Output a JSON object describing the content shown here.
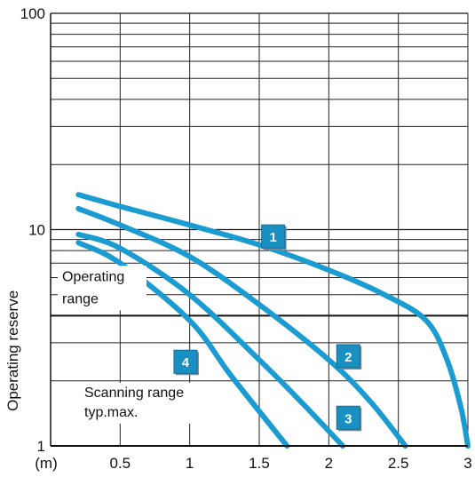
{
  "chart_data": {
    "type": "line",
    "title": "",
    "xlabel": "",
    "ylabel": "Operating reserve",
    "x_unit_label": "(m)",
    "xlim": [
      0,
      3
    ],
    "ylim": [
      1,
      100
    ],
    "y_scale": "log",
    "x_ticks": [
      "0.5",
      "1",
      "1.5",
      "2",
      "2.5",
      "3"
    ],
    "x_tick_values": [
      0.5,
      1,
      1.5,
      2,
      2.5,
      3
    ],
    "y_ticks": [
      "1",
      "10",
      "100"
    ],
    "y_tick_values": [
      1,
      10,
      100
    ],
    "grid": true,
    "threshold_line": {
      "y": 4,
      "label": "Operating range"
    },
    "annotations": [
      "Operating range",
      "Scanning range typ.max."
    ],
    "line_color": "#1a9bd1",
    "badge_color": "#1a8fc2",
    "series": [
      {
        "name": "1",
        "x": [
          0.2,
          0.5,
          1.0,
          1.5,
          2.0,
          2.4,
          2.7,
          2.85,
          2.95,
          3.0
        ],
        "y": [
          14.5,
          12.8,
          10.5,
          8.5,
          6.5,
          5.0,
          3.8,
          2.5,
          1.5,
          1.0
        ]
      },
      {
        "name": "2",
        "x": [
          0.2,
          0.5,
          1.0,
          1.5,
          2.0,
          2.3,
          2.55
        ],
        "y": [
          12.5,
          10.5,
          7.5,
          4.5,
          2.5,
          1.6,
          1.0
        ]
      },
      {
        "name": "3",
        "x": [
          0.2,
          0.5,
          1.0,
          1.5,
          1.8,
          2.1
        ],
        "y": [
          9.5,
          8.2,
          5.0,
          2.5,
          1.6,
          1.0
        ]
      },
      {
        "name": "4",
        "x": [
          0.2,
          0.5,
          1.0,
          1.3,
          1.7
        ],
        "y": [
          8.7,
          7.0,
          3.8,
          2.1,
          1.0
        ]
      }
    ]
  }
}
